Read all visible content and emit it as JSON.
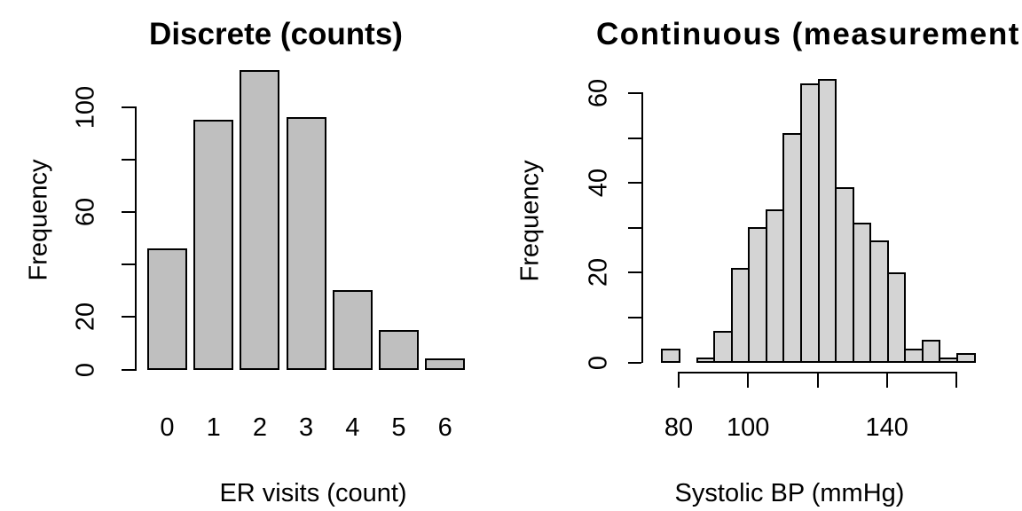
{
  "page": {
    "background": "#ffffff",
    "text_color": "#000000"
  },
  "chart_data": [
    {
      "type": "bar",
      "title": "Discrete (counts)",
      "xlabel": "ER visits (count)",
      "ylabel": "Frequency",
      "categories": [
        "0",
        "1",
        "2",
        "3",
        "4",
        "5",
        "6"
      ],
      "values": [
        46,
        95,
        114,
        96,
        30,
        15,
        4
      ],
      "ylim": [
        0,
        100
      ],
      "yticks": [
        0,
        20,
        40,
        60,
        80,
        100
      ],
      "ytick_labels": [
        {
          "value": 0,
          "label": "0"
        },
        {
          "value": 20,
          "label": "20"
        },
        {
          "value": 60,
          "label": "60"
        },
        {
          "value": 100,
          "label": "100"
        }
      ],
      "bar_color": "#bfbfbf",
      "bar_border_color": "#000000",
      "grid": false
    },
    {
      "type": "histogram",
      "title": "Continuous (measurement",
      "xlabel": "Systolic BP (mmHg)",
      "ylabel": "Frequency",
      "bin_edges": [
        75,
        80,
        85,
        90,
        95,
        100,
        105,
        110,
        115,
        120,
        125,
        130,
        135,
        140,
        145,
        150,
        155,
        160,
        165
      ],
      "counts": [
        3,
        0,
        1,
        7,
        21,
        30,
        34,
        51,
        62,
        63,
        39,
        31,
        27,
        20,
        3,
        5,
        1,
        2
      ],
      "ylim": [
        0,
        60
      ],
      "yticks": [
        0,
        10,
        20,
        30,
        40,
        50,
        60
      ],
      "ytick_labels": [
        {
          "value": 0,
          "label": "0"
        },
        {
          "value": 20,
          "label": "20"
        },
        {
          "value": 40,
          "label": "40"
        },
        {
          "value": 60,
          "label": "60"
        }
      ],
      "xticks": [
        80,
        100,
        120,
        140,
        160
      ],
      "xtick_labels": [
        {
          "value": 80,
          "label": "80"
        },
        {
          "value": 100,
          "label": "100"
        },
        {
          "value": 140,
          "label": "140"
        }
      ],
      "bar_color": "#d4d4d4",
      "bar_border_color": "#000000",
      "grid": false
    }
  ]
}
